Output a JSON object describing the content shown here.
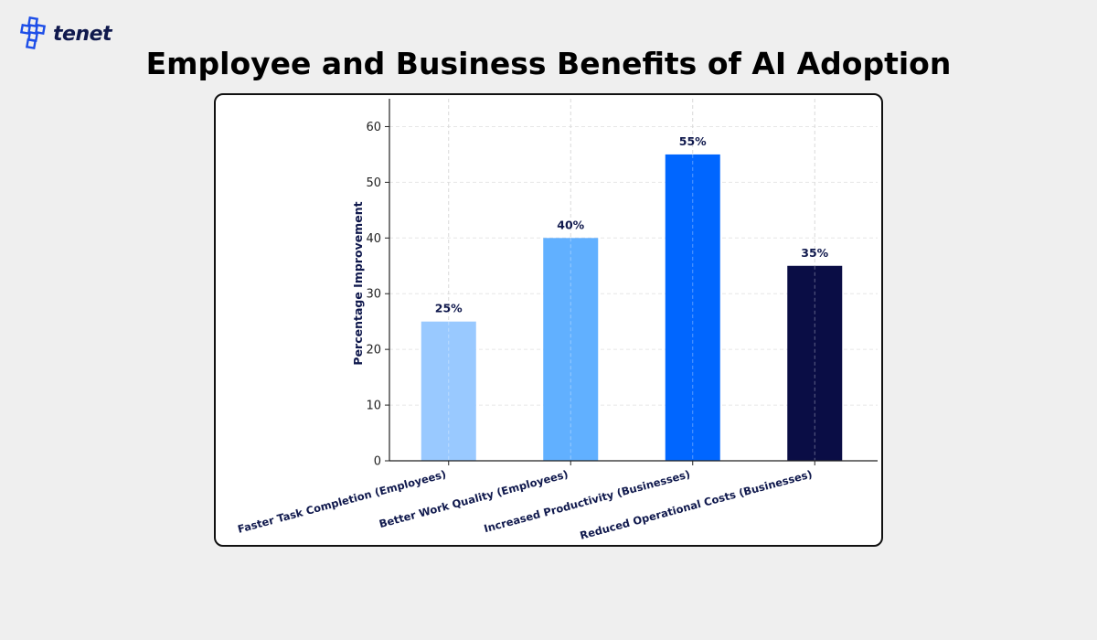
{
  "brand": {
    "name": "tenet",
    "logo_icon": "tenet-logo-icon",
    "color": "#1d4ee8"
  },
  "page": {
    "title": "Employee and Business Benefits of AI Adoption"
  },
  "chart_data": {
    "type": "bar",
    "title": "Employee and Business Benefits of AI Adoption",
    "xlabel": "",
    "ylabel": "Percentage Improvement",
    "ylim": [
      0,
      65
    ],
    "yticks": [
      0,
      10,
      20,
      30,
      40,
      50,
      60
    ],
    "grid": true,
    "legend": "none",
    "categories": [
      "Faster Task Completion (Employees)",
      "Better Work Quality (Employees)",
      "Increased Productivity (Businesses)",
      "Reduced Operational Costs (Businesses)"
    ],
    "values": [
      25,
      40,
      55,
      35
    ],
    "data_labels": [
      "25%",
      "40%",
      "55%",
      "35%"
    ],
    "colors": [
      "#99c9ff",
      "#61b0ff",
      "#0066ff",
      "#0a0d45"
    ]
  }
}
